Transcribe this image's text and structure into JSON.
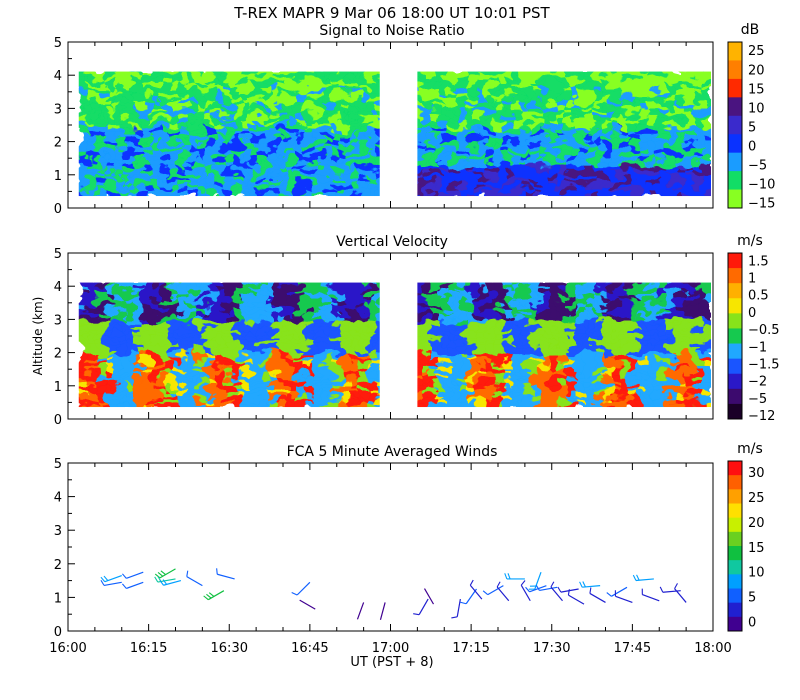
{
  "header": {
    "title": "T-REX   MAPR   9 Mar 06    18:00 UT   10:01   PST"
  },
  "chart_data": [
    {
      "type": "heatmap",
      "title": "Signal to Noise Ratio",
      "ylabel": "",
      "ylim": [
        0,
        5
      ],
      "yticks": [
        "0",
        "1",
        "2",
        "3",
        "4",
        "5"
      ],
      "data_gaps": [
        [
          "16:58",
          "17:05"
        ]
      ],
      "data_altitude_range_km": [
        0.3,
        4.2
      ],
      "colorbar": {
        "unit": "dB",
        "labels": [
          "25",
          "20",
          "15",
          "10",
          "5",
          "0",
          "−5",
          "−10",
          "−15"
        ],
        "colors": [
          "#ffb300",
          "#ff7f00",
          "#ff2a00",
          "#4a1480",
          "#3a2acc",
          "#0a32ff",
          "#1a9cff",
          "#12dd66",
          "#88ff22"
        ]
      }
    },
    {
      "type": "heatmap",
      "title": "Vertical Velocity",
      "ylabel": "Altitude (km)",
      "ylim": [
        0,
        5
      ],
      "yticks": [
        "0",
        "1",
        "2",
        "3",
        "4",
        "5"
      ],
      "data_gaps": [
        [
          "16:58",
          "17:05"
        ]
      ],
      "data_altitude_range_km": [
        0.3,
        4.2
      ],
      "colorbar": {
        "unit": "m/s",
        "labels": [
          "1.5",
          "1",
          "0.5",
          "0",
          "−0.5",
          "−1",
          "−1.5",
          "−2",
          "−5",
          "−12"
        ],
        "colors": [
          "#ff1a0a",
          "#ff6a00",
          "#ffb000",
          "#f7e600",
          "#88e31a",
          "#16c94f",
          "#20a8ff",
          "#1a55ff",
          "#2a18c8",
          "#3c0a6e",
          "#1a0028"
        ]
      }
    },
    {
      "type": "scatter",
      "title": "FCA 5 Minute Averaged Winds",
      "ylabel": "",
      "ylim": [
        0,
        5
      ],
      "yticks": [
        "0",
        "1",
        "2",
        "3",
        "4",
        "5"
      ],
      "colorbar": {
        "unit": "m/s",
        "labels": [
          "30",
          "25",
          "20",
          "15",
          "10",
          "5",
          "0"
        ],
        "colors": [
          "#ff1010",
          "#ff6000",
          "#ffa000",
          "#ffe000",
          "#c8f000",
          "#6ad020",
          "#10c040",
          "#10c8a0",
          "#00a0ff",
          "#1060ff",
          "#2020d0",
          "#400090"
        ]
      },
      "wind_barbs": [
        {
          "time": "16:10",
          "alt": 1.65,
          "dir": 250,
          "speed": 8
        },
        {
          "time": "16:10",
          "alt": 1.45,
          "dir": 260,
          "speed": 6
        },
        {
          "time": "16:14",
          "alt": 1.75,
          "dir": 250,
          "speed": 7
        },
        {
          "time": "16:14",
          "alt": 1.45,
          "dir": 250,
          "speed": 6
        },
        {
          "time": "16:20",
          "alt": 1.85,
          "dir": 240,
          "speed": 14
        },
        {
          "time": "16:20",
          "alt": 1.55,
          "dir": 260,
          "speed": 12
        },
        {
          "time": "16:21",
          "alt": 1.5,
          "dir": 255,
          "speed": 9
        },
        {
          "time": "16:25",
          "alt": 1.35,
          "dir": 300,
          "speed": 6
        },
        {
          "time": "16:29",
          "alt": 1.2,
          "dir": 240,
          "speed": 14
        },
        {
          "time": "16:31",
          "alt": 1.55,
          "dir": 285,
          "speed": 7
        },
        {
          "time": "16:45",
          "alt": 1.45,
          "dir": 225,
          "speed": 6
        },
        {
          "time": "16:46",
          "alt": 0.65,
          "dir": 300,
          "speed": 2
        },
        {
          "time": "16:55",
          "alt": 0.85,
          "dir": 200,
          "speed": 2
        },
        {
          "time": "16:59",
          "alt": 0.85,
          "dir": 195,
          "speed": 2
        },
        {
          "time": "17:07",
          "alt": 0.95,
          "dir": 210,
          "speed": 3
        },
        {
          "time": "17:08",
          "alt": 0.8,
          "dir": 330,
          "speed": 2
        },
        {
          "time": "17:13",
          "alt": 0.95,
          "dir": 190,
          "speed": 3
        },
        {
          "time": "17:16",
          "alt": 1.25,
          "dir": 215,
          "speed": 6
        },
        {
          "time": "17:17",
          "alt": 0.95,
          "dir": 320,
          "speed": 3
        },
        {
          "time": "17:21",
          "alt": 1.35,
          "dir": 240,
          "speed": 7
        },
        {
          "time": "17:22",
          "alt": 0.9,
          "dir": 320,
          "speed": 3
        },
        {
          "time": "17:25",
          "alt": 1.55,
          "dir": 270,
          "speed": 9
        },
        {
          "time": "17:26",
          "alt": 0.9,
          "dir": 330,
          "speed": 4
        },
        {
          "time": "17:28",
          "alt": 1.75,
          "dir": 200,
          "speed": 10
        },
        {
          "time": "17:29",
          "alt": 1.35,
          "dir": 250,
          "speed": 7
        },
        {
          "time": "17:31",
          "alt": 1.3,
          "dir": 260,
          "speed": 6
        },
        {
          "time": "17:32",
          "alt": 0.9,
          "dir": 320,
          "speed": 3
        },
        {
          "time": "17:35",
          "alt": 1.25,
          "dir": 260,
          "speed": 5
        },
        {
          "time": "17:36",
          "alt": 0.8,
          "dir": 300,
          "speed": 4
        },
        {
          "time": "17:39",
          "alt": 1.35,
          "dir": 265,
          "speed": 8
        },
        {
          "time": "17:40",
          "alt": 0.85,
          "dir": 300,
          "speed": 4
        },
        {
          "time": "17:44",
          "alt": 1.3,
          "dir": 240,
          "speed": 7
        },
        {
          "time": "17:45",
          "alt": 0.85,
          "dir": 290,
          "speed": 4
        },
        {
          "time": "17:49",
          "alt": 1.55,
          "dir": 265,
          "speed": 10
        },
        {
          "time": "17:50",
          "alt": 0.9,
          "dir": 290,
          "speed": 4
        },
        {
          "time": "17:54",
          "alt": 1.2,
          "dir": 265,
          "speed": 5
        },
        {
          "time": "17:55",
          "alt": 0.85,
          "dir": 320,
          "speed": 3
        }
      ]
    }
  ],
  "xaxis": {
    "label": "UT   (PST + 8)",
    "ticks": [
      "16:00",
      "16:15",
      "16:30",
      "16:45",
      "17:00",
      "17:15",
      "17:30",
      "17:45",
      "18:00"
    ]
  }
}
